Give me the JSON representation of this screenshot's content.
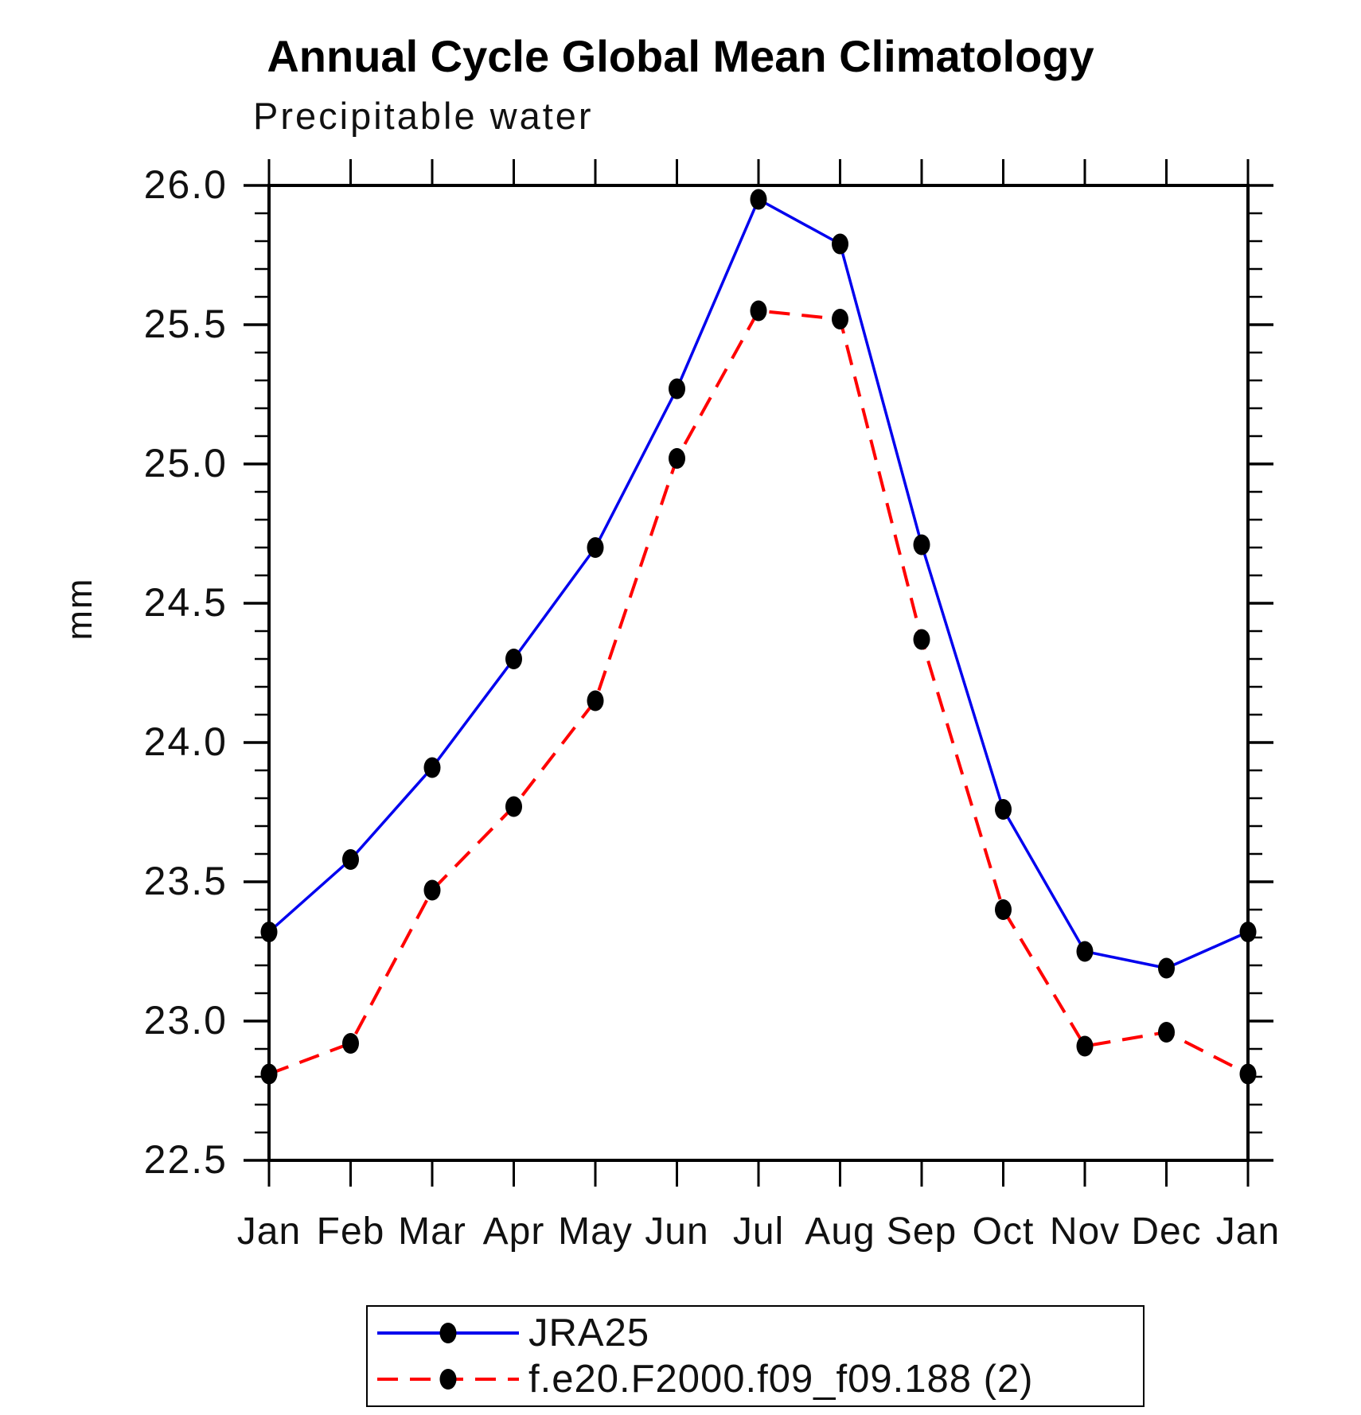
{
  "chart": {
    "title": "Annual Cycle Global Mean Climatology",
    "subtitle": "Precipitable water",
    "ylabel": "mm"
  },
  "chart_data": {
    "type": "line",
    "title": "Annual Cycle Global Mean Climatology",
    "subtitle": "Precipitable water",
    "xlabel": "",
    "ylabel": "mm",
    "ylim": [
      22.5,
      26.0
    ],
    "y_major_step": 0.5,
    "y_minor_step": 0.1,
    "y_tick_labels": [
      "26.0",
      "25.5",
      "25.0",
      "24.5",
      "24.0",
      "23.5",
      "23.0",
      "22.5"
    ],
    "categories": [
      "Jan",
      "Feb",
      "Mar",
      "Apr",
      "May",
      "Jun",
      "Jul",
      "Aug",
      "Sep",
      "Oct",
      "Nov",
      "Dec",
      "Jan"
    ],
    "grid": false,
    "legend_position": "bottom",
    "axis_color": "#000000",
    "marker_color": "#000000",
    "series": [
      {
        "name": "JRA25",
        "slug": "jra25",
        "color": "#0000EE",
        "style": "solid",
        "marker": "filled-circle",
        "values": [
          23.32,
          23.58,
          23.91,
          24.3,
          24.7,
          25.27,
          25.95,
          25.79,
          24.71,
          23.76,
          23.25,
          23.19,
          23.32
        ]
      },
      {
        "name": "f.e20.F2000.f09_f09.188 (2)",
        "slug": "f-e20-f2000-f09-f09-188-2",
        "color": "#FF0000",
        "style": "dashed",
        "marker": "filled-circle",
        "values": [
          22.81,
          22.92,
          23.47,
          23.77,
          24.15,
          25.02,
          25.55,
          25.52,
          24.37,
          23.4,
          22.91,
          22.96,
          22.81
        ]
      }
    ]
  }
}
